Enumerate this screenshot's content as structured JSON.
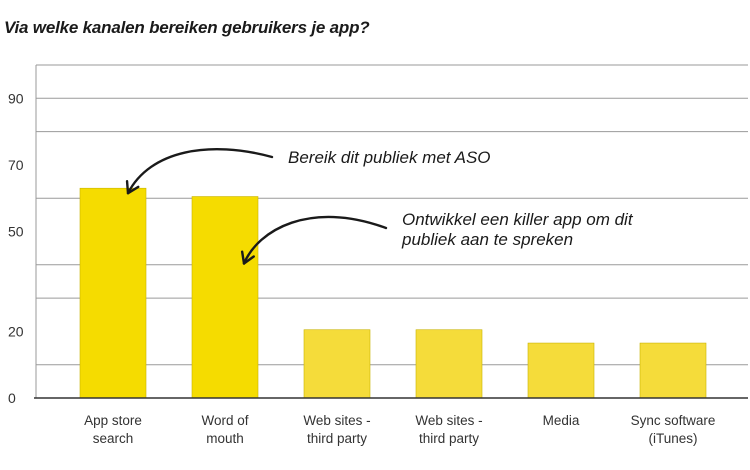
{
  "chart_data": {
    "type": "bar",
    "title": "Via welke kanalen bereiken gebruikers je app?",
    "categories": [
      [
        "App store",
        "search"
      ],
      [
        "Word of",
        "mouth"
      ],
      [
        "Web sites -",
        "third party"
      ],
      [
        "Web sites -",
        "third party"
      ],
      [
        "Media"
      ],
      [
        "Sync software",
        "(iTunes)"
      ]
    ],
    "values": [
      63,
      60.5,
      20.5,
      20.5,
      16.5,
      16.5
    ],
    "yticks": [
      0,
      20,
      50,
      70,
      90
    ],
    "ylim": [
      0,
      100
    ],
    "grid": true,
    "annotations": [
      {
        "lines": [
          "Bereik dit publiek met ASO"
        ],
        "target_index": 0
      },
      {
        "lines": [
          "Ontwikkel een killer app om dit",
          "publiek aan te spreken"
        ],
        "target_index": 1
      }
    ]
  },
  "colors": {
    "bar_primary": "#f5dc00",
    "bar_secondary": "#f5dc3a",
    "bar_outline": "#c8b400",
    "grid": "#9a9a9a",
    "arrow": "#1a1a1a"
  }
}
